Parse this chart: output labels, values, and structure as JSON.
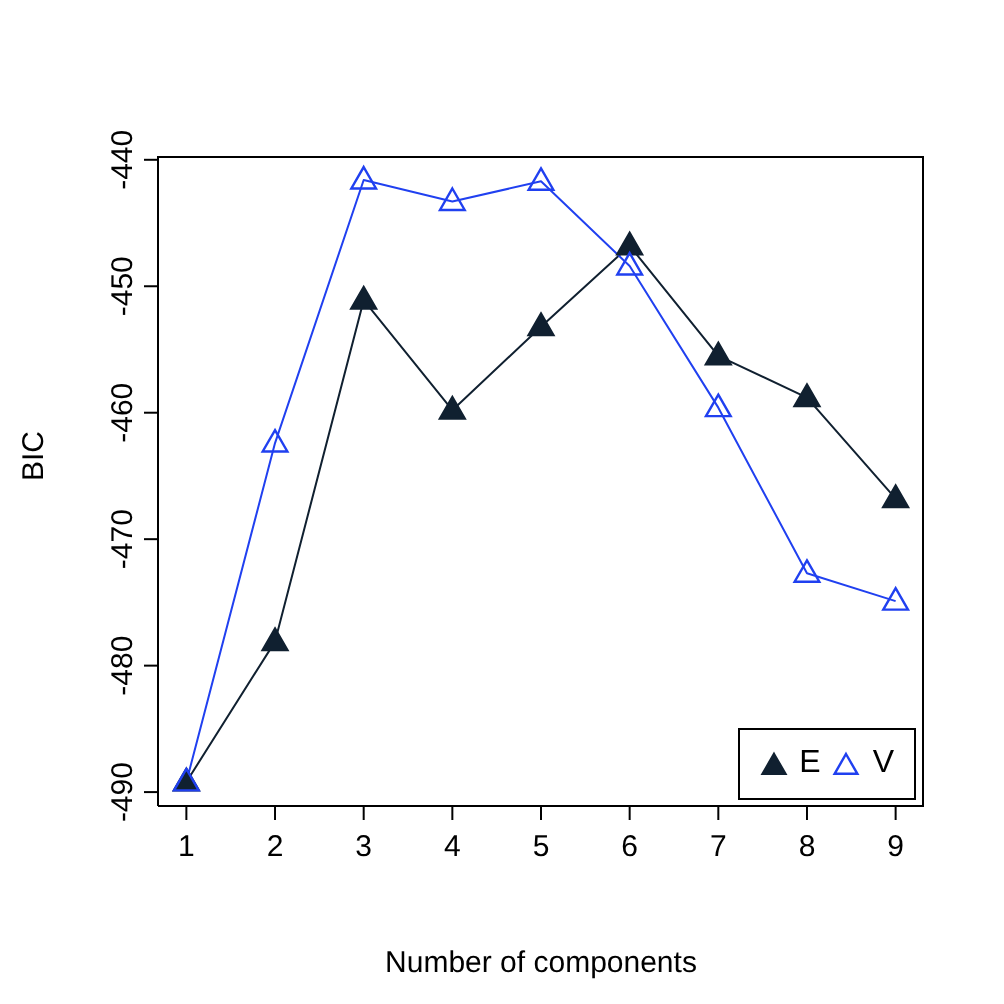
{
  "chart_data": {
    "type": "line",
    "xlabel": "Number of components",
    "ylabel": "BIC",
    "x": [
      1,
      2,
      3,
      4,
      5,
      6,
      7,
      8,
      9
    ],
    "series": [
      {
        "name": "E",
        "color": "#102030",
        "values": [
          -489.2,
          -478.1,
          -451.1,
          -459.8,
          -453.2,
          -446.8,
          -455.5,
          -458.8,
          -466.8
        ]
      },
      {
        "name": "V",
        "color": "#2040f0",
        "values": [
          -489.2,
          -462.4,
          -441.6,
          -443.3,
          -441.7,
          -448.4,
          -459.6,
          -472.7,
          -474.9
        ]
      }
    ],
    "xlim": [
      0.68,
      9.32
    ],
    "xticks": [
      1,
      2,
      3,
      4,
      5,
      6,
      7,
      8,
      9
    ],
    "ylim": [
      -491.1,
      -439.7
    ],
    "yticks": [
      -490,
      -480,
      -470,
      -460,
      -450,
      -440
    ],
    "grid": false,
    "legend": "bottom right",
    "marker": "triangle",
    "line_style": "solid"
  }
}
